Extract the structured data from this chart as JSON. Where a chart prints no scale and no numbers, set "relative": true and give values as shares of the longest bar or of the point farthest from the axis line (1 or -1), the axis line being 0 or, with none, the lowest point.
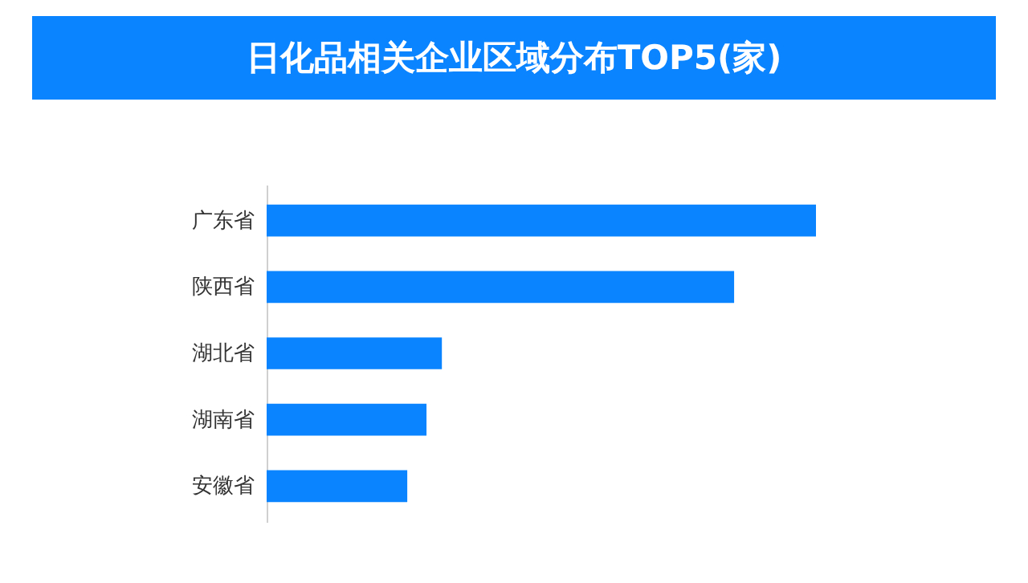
{
  "chart_data": {
    "type": "bar",
    "orientation": "horizontal",
    "relative": true,
    "title": "日化品相关企业区域分布TOP5(家)",
    "categories": [
      "广东省",
      "陕西省",
      "湖北省",
      "湖南省",
      "安徽省"
    ],
    "values": [
      1,
      0.851,
      0.319,
      0.291,
      0.256
    ],
    "color": "#0a84ff"
  }
}
